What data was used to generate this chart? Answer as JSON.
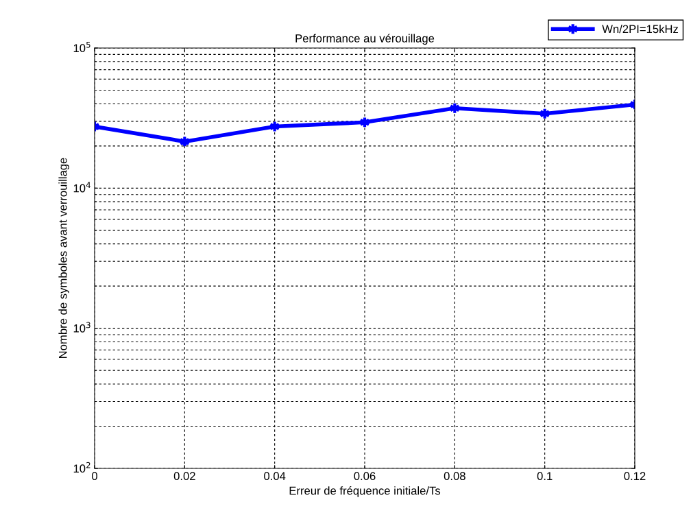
{
  "chart_data": {
    "type": "line",
    "title": "Performance au vérouillage",
    "xlabel": "Erreur de fréquence initiale/Ts",
    "ylabel": "Nombre de symboles avant verrouillage",
    "x": [
      0,
      0.02,
      0.04,
      0.06,
      0.08,
      0.1,
      0.12
    ],
    "series": [
      {
        "name": "Wn/2PI=15kHz",
        "color": "#0000ff",
        "values": [
          27500,
          21500,
          27500,
          29500,
          37200,
          34000,
          39500
        ]
      }
    ],
    "log": "y",
    "xlim": [
      0,
      0.12
    ],
    "xticks": [
      0,
      0.02,
      0.04,
      0.06,
      0.08,
      0.1,
      0.12
    ],
    "ylim": [
      100,
      100000
    ],
    "yticks": [
      {
        "value": 100,
        "label": "10$^{2}$"
      },
      {
        "value": 1000,
        "label": "10$^{3}$"
      },
      {
        "value": 10000,
        "label": "10$^{4}$"
      },
      {
        "value": 100000,
        "label": "10$^{5}$"
      }
    ],
    "grid": true,
    "legend": "top right",
    "marker": "cross",
    "line_style": "solid"
  }
}
